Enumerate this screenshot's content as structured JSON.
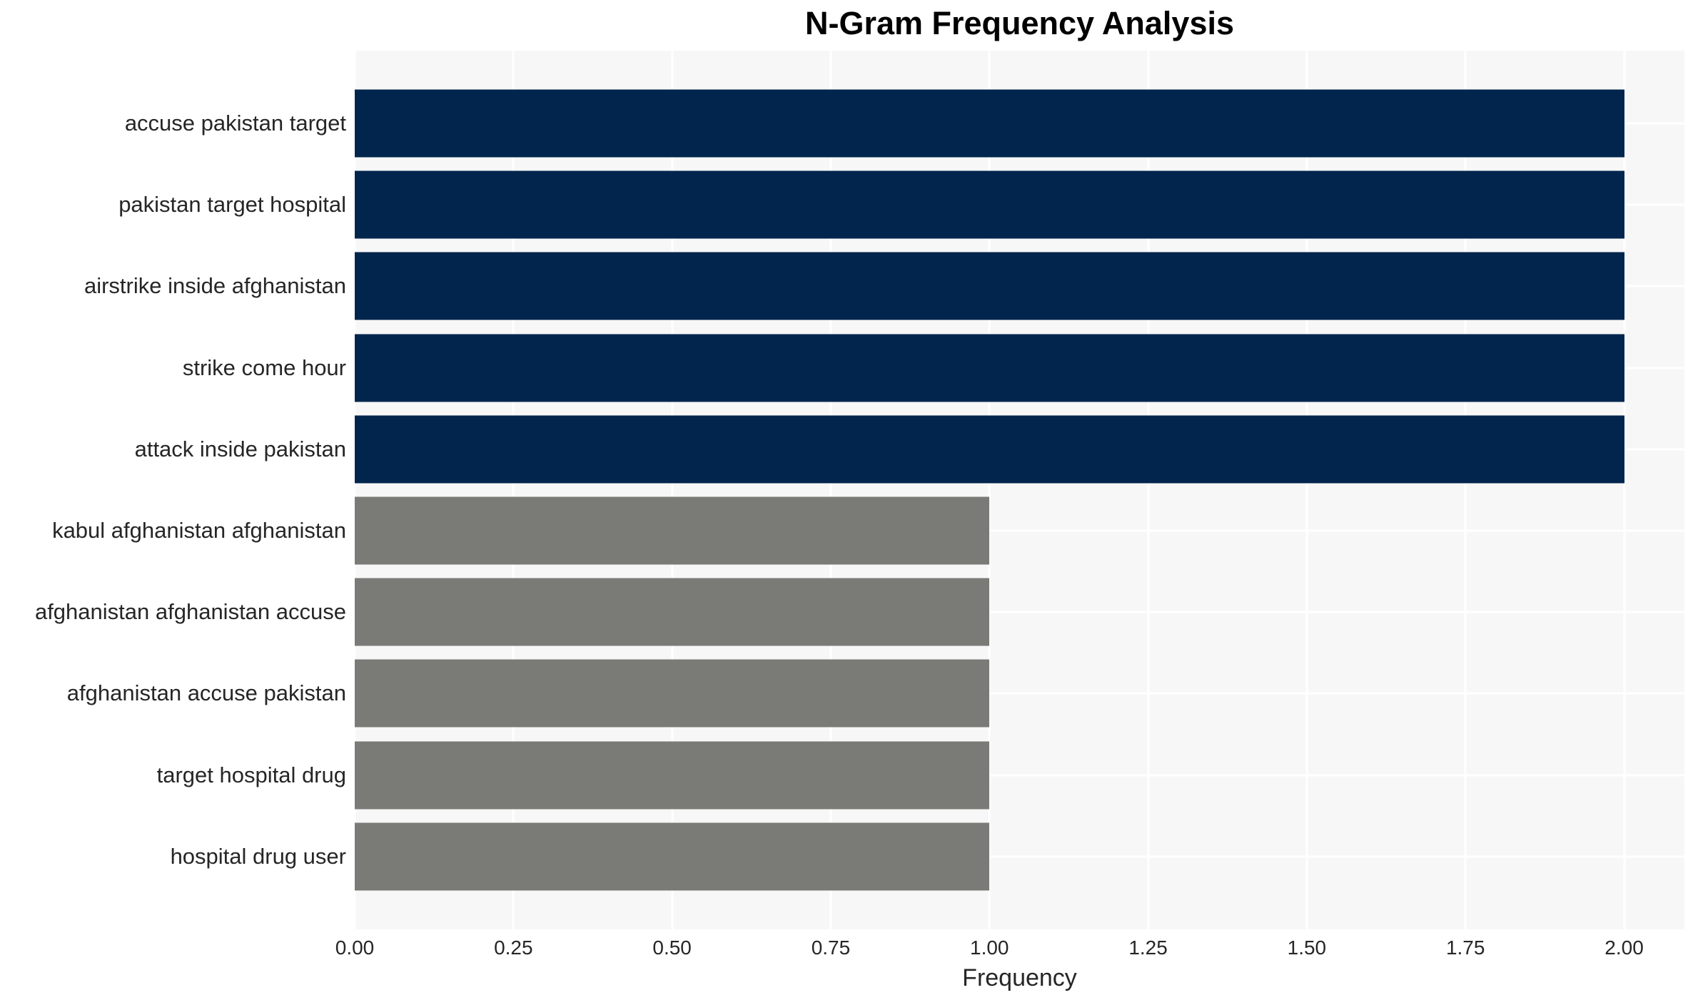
{
  "chart_data": {
    "type": "bar",
    "orientation": "horizontal",
    "title": "N-Gram Frequency Analysis",
    "xlabel": "Frequency",
    "ylabel": "",
    "categories": [
      "accuse pakistan target",
      "pakistan target hospital",
      "airstrike inside afghanistan",
      "strike come hour",
      "attack inside pakistan",
      "kabul afghanistan afghanistan",
      "afghanistan afghanistan accuse",
      "afghanistan accuse pakistan",
      "target hospital drug",
      "hospital drug user"
    ],
    "values": [
      2,
      2,
      2,
      2,
      2,
      1,
      1,
      1,
      1,
      1
    ],
    "bar_colors": [
      "#01254d",
      "#01254d",
      "#01254d",
      "#01254d",
      "#01254d",
      "#7a7a76",
      "#7a7a76",
      "#7a7a76",
      "#7a7a76",
      "#7a7a76"
    ],
    "xlim": [
      0,
      2.095
    ],
    "xtick_values": [
      0,
      0.25,
      0.5,
      0.75,
      1.0,
      1.25,
      1.5,
      1.75,
      2.0
    ],
    "xtick_labels": [
      "0.00",
      "0.25",
      "0.50",
      "0.75",
      "1.00",
      "1.25",
      "1.50",
      "1.75",
      "2.00"
    ],
    "legend": "none",
    "grid": {
      "vertical": true,
      "horizontal": true
    }
  },
  "colors": {
    "bar_frequency_2": "#01254d",
    "bar_frequency_1": "#7a7a76",
    "panel_background": "#f7f7f7",
    "gridline": "#ffffff",
    "tick_text": "#262626",
    "title_text": "#000000",
    "page_background": "#ffffff"
  }
}
